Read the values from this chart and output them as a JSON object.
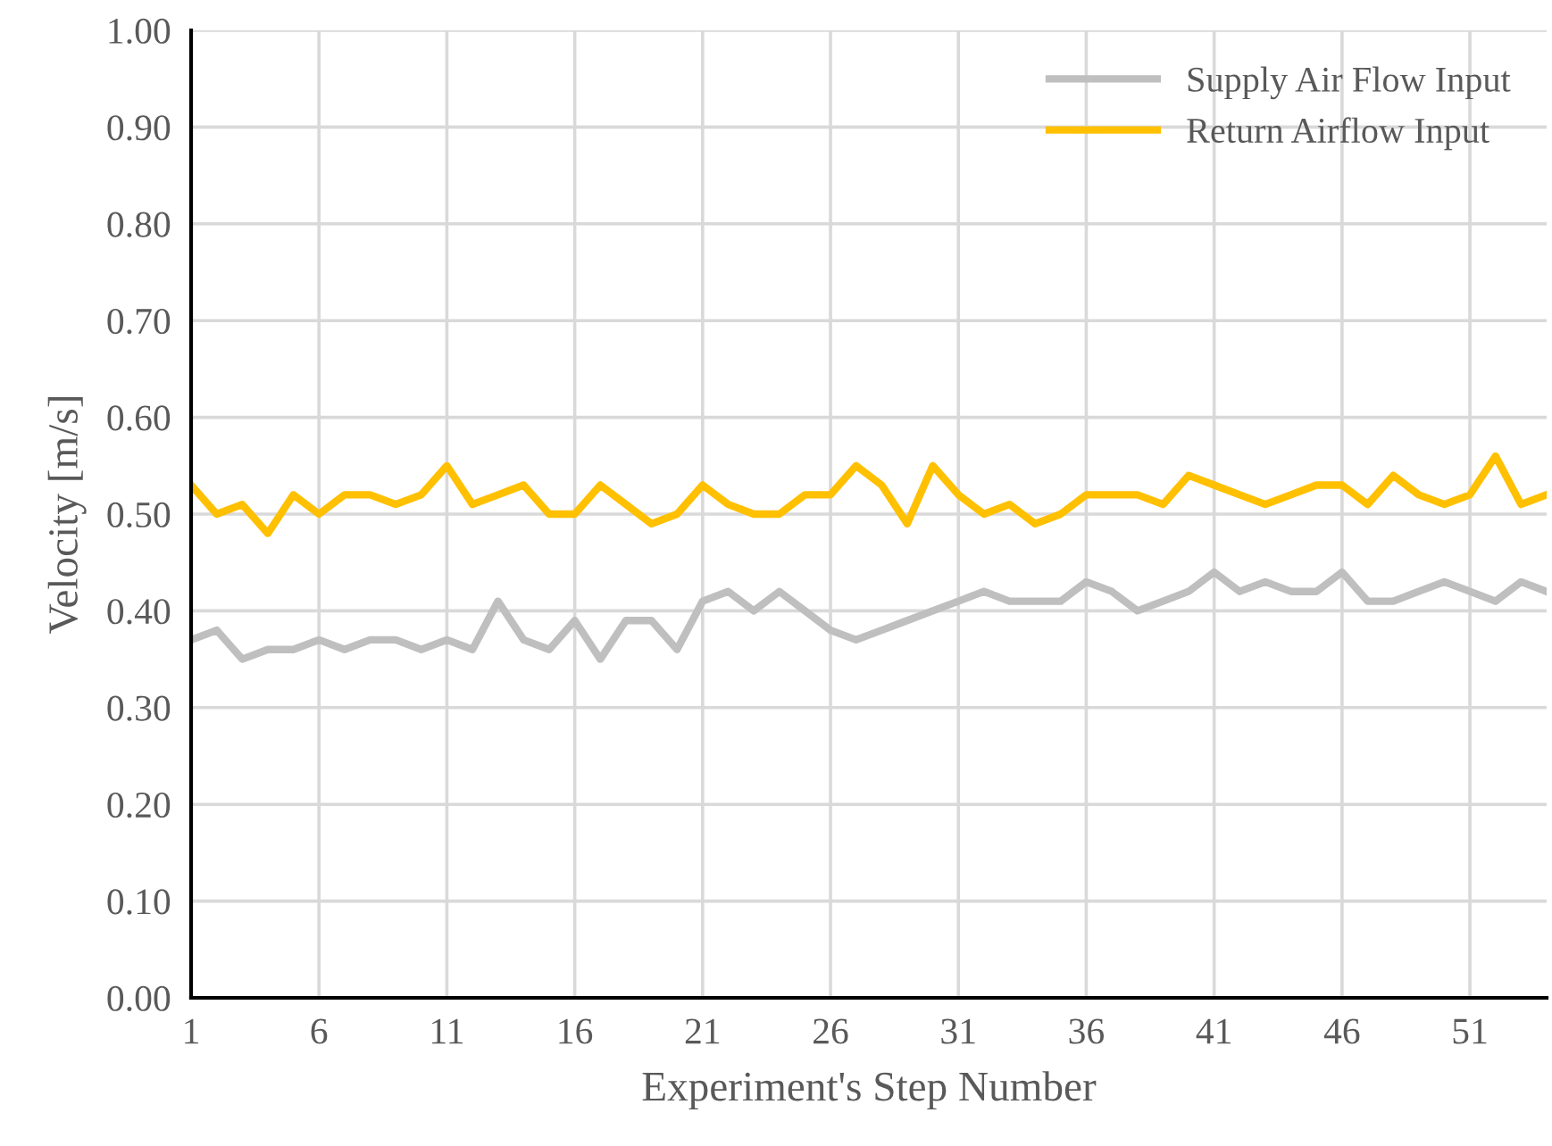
{
  "chart_data": {
    "type": "line",
    "xlabel": "Experiment's Step Number",
    "ylabel": "Velocity [m/s]",
    "x": [
      1,
      2,
      3,
      4,
      5,
      6,
      7,
      8,
      9,
      10,
      11,
      12,
      13,
      14,
      15,
      16,
      17,
      18,
      19,
      20,
      21,
      22,
      23,
      24,
      25,
      26,
      27,
      28,
      29,
      30,
      31,
      32,
      33,
      34,
      35,
      36,
      37,
      38,
      39,
      40,
      41,
      42,
      43,
      44,
      45,
      46,
      47,
      48,
      49,
      50,
      51,
      52,
      53,
      54
    ],
    "series": [
      {
        "name": "Supply Air Flow Input",
        "color": "#bfbfbf",
        "values": [
          0.37,
          0.38,
          0.35,
          0.36,
          0.36,
          0.37,
          0.36,
          0.37,
          0.37,
          0.36,
          0.37,
          0.36,
          0.41,
          0.37,
          0.36,
          0.39,
          0.35,
          0.39,
          0.39,
          0.36,
          0.41,
          0.42,
          0.4,
          0.42,
          0.4,
          0.38,
          0.37,
          0.38,
          0.39,
          0.4,
          0.41,
          0.42,
          0.41,
          0.41,
          0.41,
          0.43,
          0.42,
          0.4,
          0.41,
          0.42,
          0.44,
          0.42,
          0.43,
          0.42,
          0.42,
          0.44,
          0.41,
          0.41,
          0.42,
          0.43,
          0.42,
          0.41,
          0.43,
          0.42
        ]
      },
      {
        "name": "Return Airflow Input",
        "color": "#ffc000",
        "values": [
          0.53,
          0.5,
          0.51,
          0.48,
          0.52,
          0.5,
          0.52,
          0.52,
          0.51,
          0.52,
          0.55,
          0.51,
          0.52,
          0.53,
          0.5,
          0.5,
          0.53,
          0.51,
          0.49,
          0.5,
          0.53,
          0.51,
          0.5,
          0.5,
          0.52,
          0.52,
          0.55,
          0.53,
          0.49,
          0.55,
          0.52,
          0.5,
          0.51,
          0.49,
          0.5,
          0.52,
          0.52,
          0.52,
          0.51,
          0.54,
          0.53,
          0.52,
          0.51,
          0.52,
          0.53,
          0.53,
          0.51,
          0.54,
          0.52,
          0.51,
          0.52,
          0.56,
          0.51,
          0.52
        ]
      }
    ],
    "xlim": [
      1,
      54
    ],
    "xticks": [
      1,
      6,
      11,
      16,
      21,
      26,
      31,
      36,
      41,
      46,
      51
    ],
    "ylim": [
      0,
      1
    ],
    "yticks": [
      {
        "value": 0,
        "label": "0.00"
      },
      {
        "value": 0.1,
        "label": "0.10"
      },
      {
        "value": 0.2,
        "label": "0.20"
      },
      {
        "value": 0.3,
        "label": "0.30"
      },
      {
        "value": 0.4,
        "label": "0.40"
      },
      {
        "value": 0.5,
        "label": "0.50"
      },
      {
        "value": 0.6,
        "label": "0.60"
      },
      {
        "value": 0.7,
        "label": "0.70"
      },
      {
        "value": 0.8,
        "label": "0.80"
      },
      {
        "value": 0.9,
        "label": "0.90"
      },
      {
        "value": 1,
        "label": "1.00"
      }
    ],
    "grid": true,
    "legend": "top right",
    "marker": "none",
    "line_style": "solid"
  }
}
